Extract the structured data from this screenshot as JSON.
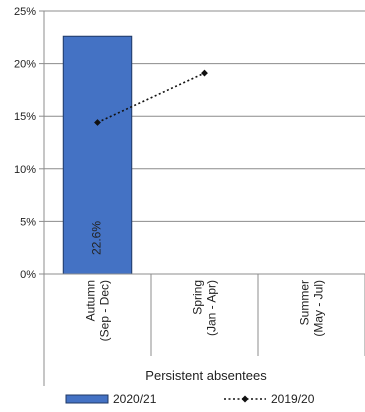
{
  "chart_data": {
    "type": "bar",
    "categories": [
      "Autumn\n(Sep - Dec)",
      "Spring\n(Jan - Apr)",
      "Summer\n(May - Jul)"
    ],
    "category_group": "Persistent absentees",
    "series": [
      {
        "name": "2020/21",
        "type": "bar",
        "values": [
          22.6,
          null,
          null
        ],
        "data_labels": [
          "22.6%",
          null,
          null
        ],
        "color": "#4472C4"
      },
      {
        "name": "2019/20",
        "type": "line",
        "values": [
          14.4,
          19.1,
          null
        ],
        "style": "dotted",
        "marker": "diamond",
        "color": "#111111"
      }
    ],
    "ylim": [
      0,
      25
    ],
    "yticks": [
      0,
      5,
      10,
      15,
      20,
      25
    ],
    "ytick_labels": [
      "0%",
      "5%",
      "10%",
      "15%",
      "20%",
      "25%"
    ],
    "grid": true,
    "legend_position": "bottom"
  }
}
